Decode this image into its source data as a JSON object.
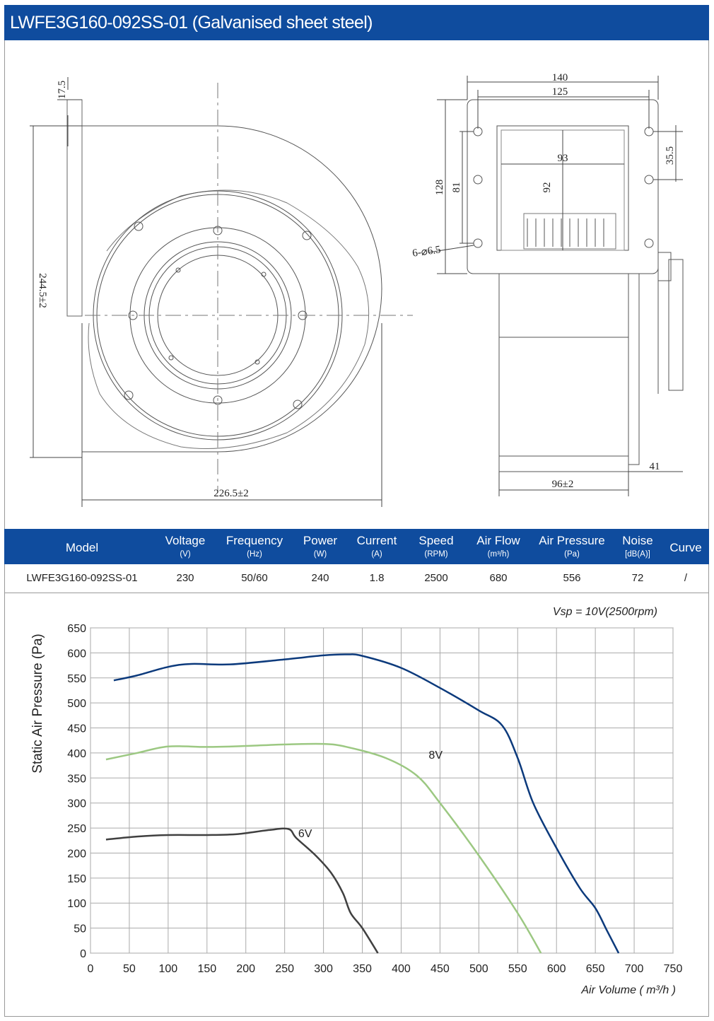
{
  "title": "LWFE3G160-092SS-01 (Galvanised sheet steel)",
  "drawing": {
    "dims": {
      "d17_5": "17.5",
      "d244_5": "244.5±2",
      "d226_5": "226.5±2",
      "d140": "140",
      "d125": "125",
      "d35_5": "35.5",
      "d93": "93",
      "d128": "128",
      "d81": "81",
      "d92": "92",
      "d6x6_5": "6-⌀6.5",
      "d96": "96±2",
      "d41": "41"
    }
  },
  "spec_table": {
    "headers": [
      {
        "name": "Model",
        "unit": ""
      },
      {
        "name": "Voltage",
        "unit": "(V)"
      },
      {
        "name": "Frequency",
        "unit": "(Hz)"
      },
      {
        "name": "Power",
        "unit": "(W)"
      },
      {
        "name": "Current",
        "unit": "(A)"
      },
      {
        "name": "Speed",
        "unit": "(RPM)"
      },
      {
        "name": "Air Flow",
        "unit": "(m³/h)"
      },
      {
        "name": "Air Pressure",
        "unit": "(Pa)"
      },
      {
        "name": "Noise",
        "unit": "[dB(A)]"
      },
      {
        "name": "Curve",
        "unit": ""
      }
    ],
    "row": [
      "LWFE3G160-092SS-01",
      "230",
      "50/60",
      "240",
      "1.8",
      "2500",
      "680",
      "556",
      "72",
      "/"
    ]
  },
  "chart_data": {
    "type": "line",
    "annotation": "Vsp = 10V(2500rpm)",
    "xlabel": "Air Volume ( m³/h )",
    "ylabel": "Static Air Pressure  (Pa)",
    "xlim": [
      0,
      750
    ],
    "ylim": [
      0,
      650
    ],
    "xticks": [
      0,
      50,
      100,
      150,
      200,
      250,
      300,
      350,
      400,
      450,
      500,
      550,
      600,
      650,
      700,
      750
    ],
    "yticks": [
      0,
      50,
      100,
      150,
      200,
      250,
      300,
      350,
      400,
      450,
      500,
      550,
      600,
      650
    ],
    "grid": true,
    "series": [
      {
        "name": "",
        "color": "#0c3a7c",
        "points": [
          [
            30,
            545
          ],
          [
            60,
            555
          ],
          [
            100,
            572
          ],
          [
            130,
            578
          ],
          [
            180,
            577
          ],
          [
            250,
            587
          ],
          [
            300,
            595
          ],
          [
            330,
            597
          ],
          [
            350,
            594
          ],
          [
            400,
            570
          ],
          [
            450,
            530
          ],
          [
            500,
            485
          ],
          [
            530,
            455
          ],
          [
            550,
            390
          ],
          [
            570,
            300
          ],
          [
            600,
            210
          ],
          [
            630,
            130
          ],
          [
            650,
            90
          ],
          [
            665,
            45
          ],
          [
            680,
            0
          ]
        ]
      },
      {
        "name": "8V",
        "label": "8V",
        "color": "#9cc882",
        "points": [
          [
            20,
            387
          ],
          [
            60,
            400
          ],
          [
            100,
            413
          ],
          [
            150,
            412
          ],
          [
            200,
            414
          ],
          [
            250,
            417
          ],
          [
            300,
            418
          ],
          [
            330,
            412
          ],
          [
            380,
            390
          ],
          [
            420,
            355
          ],
          [
            450,
            300
          ],
          [
            500,
            195
          ],
          [
            550,
            80
          ],
          [
            580,
            0
          ]
        ]
      },
      {
        "name": "6V",
        "label": "6V",
        "color": "#404040",
        "points": [
          [
            20,
            227
          ],
          [
            60,
            233
          ],
          [
            100,
            236
          ],
          [
            150,
            236
          ],
          [
            190,
            238
          ],
          [
            230,
            246
          ],
          [
            255,
            248
          ],
          [
            265,
            230
          ],
          [
            290,
            195
          ],
          [
            310,
            160
          ],
          [
            325,
            120
          ],
          [
            335,
            80
          ],
          [
            350,
            50
          ],
          [
            370,
            0
          ]
        ]
      }
    ]
  }
}
